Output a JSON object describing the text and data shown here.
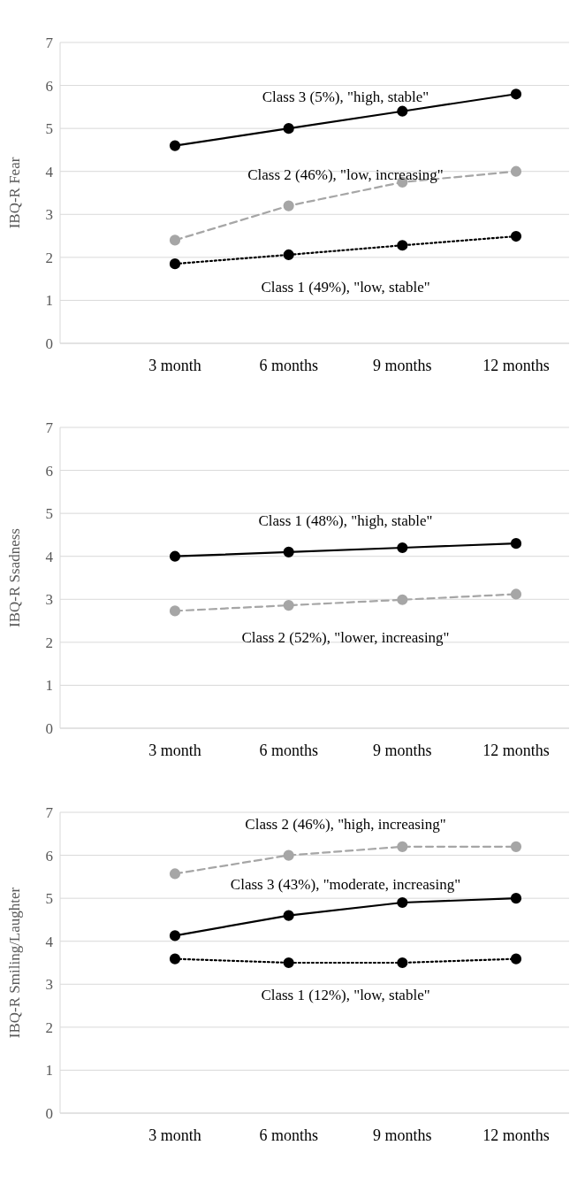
{
  "chart_data": [
    {
      "type": "line",
      "ylabel": "IBQ-R Fear",
      "categories": [
        "3 month",
        "6 months",
        "9 months",
        "12 months"
      ],
      "ylim": [
        0,
        7
      ],
      "yticks": [
        0,
        1,
        2,
        3,
        4,
        5,
        6,
        7
      ],
      "grid": "y",
      "legend": false,
      "marker": "circle",
      "series": [
        {
          "name": "Class 3 (5%), \"high, stable\"",
          "color": "#000000",
          "line_style": "solid",
          "values": [
            4.6,
            5.0,
            5.4,
            5.8
          ]
        },
        {
          "name": "Class 2 (46%), \"low, increasing\"",
          "color": "#a6a6a6",
          "line_style": "dashed",
          "values": [
            2.4,
            3.2,
            3.75,
            4.0
          ]
        },
        {
          "name": "Class 1 (49%), \"low, stable\"",
          "color": "#000000",
          "line_style": "dotted",
          "values": [
            1.85,
            2.06,
            2.28,
            2.49
          ]
        }
      ]
    },
    {
      "type": "line",
      "ylabel": "IBQ-R Ssadness",
      "categories": [
        "3 month",
        "6 months",
        "9 months",
        "12 months"
      ],
      "ylim": [
        0,
        7
      ],
      "yticks": [
        0,
        1,
        2,
        3,
        4,
        5,
        6,
        7
      ],
      "grid": "y",
      "legend": false,
      "marker": "circle",
      "series": [
        {
          "name": "Class 1 (48%), \"high, stable\"",
          "color": "#000000",
          "line_style": "solid",
          "values": [
            4.0,
            4.1,
            4.2,
            4.3
          ]
        },
        {
          "name": "Class 2 (52%), \"lower, increasing\"",
          "color": "#a6a6a6",
          "line_style": "dashed",
          "values": [
            2.73,
            2.86,
            2.99,
            3.12
          ]
        }
      ]
    },
    {
      "type": "line",
      "ylabel": "IBQ-R Smiling/Laughter",
      "categories": [
        "3 month",
        "6 months",
        "9 months",
        "12 months"
      ],
      "ylim": [
        0,
        7
      ],
      "yticks": [
        0,
        1,
        2,
        3,
        4,
        5,
        6,
        7
      ],
      "grid": "y",
      "legend": false,
      "marker": "circle",
      "series": [
        {
          "name": "Class 2 (46%), \"high, increasing\"",
          "color": "#a6a6a6",
          "line_style": "dashed",
          "values": [
            5.57,
            6.0,
            6.2,
            6.2
          ]
        },
        {
          "name": "Class 3 (43%), \"moderate, increasing\"",
          "color": "#000000",
          "line_style": "solid",
          "values": [
            4.13,
            4.6,
            4.9,
            5.0
          ]
        },
        {
          "name": "Class 1 (12%), \"low, stable\"",
          "color": "#000000",
          "line_style": "dotted",
          "values": [
            3.59,
            3.5,
            3.5,
            3.59
          ]
        }
      ]
    }
  ]
}
